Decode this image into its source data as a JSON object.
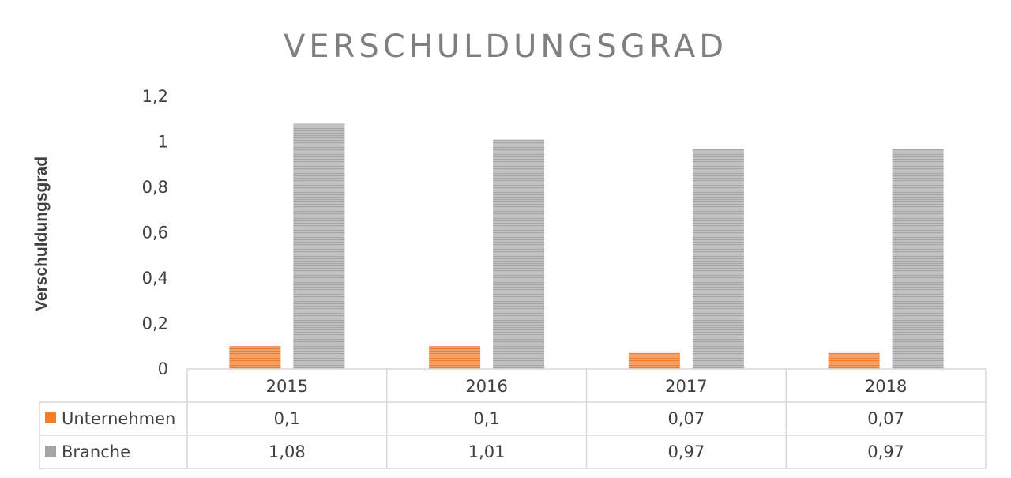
{
  "chart_data": {
    "type": "bar",
    "title": "VERSCHULDUNGSGRAD",
    "ylabel": "Verschuldungsgrad",
    "xlabel": "",
    "categories": [
      "2015",
      "2016",
      "2017",
      "2018"
    ],
    "series": [
      {
        "name": "Unternehmen",
        "values": [
          0.1,
          0.1,
          0.07,
          0.07
        ],
        "color": "#ed7d31"
      },
      {
        "name": "Branche",
        "values": [
          1.08,
          1.01,
          0.97,
          0.97
        ],
        "color": "#a5a5a5"
      }
    ],
    "ylim": [
      0,
      1.2
    ],
    "yticks": [
      "0",
      "0,2",
      "0,4",
      "0,6",
      "0,8",
      "1",
      "1,2"
    ],
    "data_table": {
      "rows": [
        {
          "legend": "Unternehmen",
          "cells": [
            "0,1",
            "0,1",
            "0,07",
            "0,07"
          ]
        },
        {
          "legend": "Branche",
          "cells": [
            "1,08",
            "1,01",
            "0,97",
            "0,97"
          ]
        }
      ]
    },
    "grid": false
  }
}
